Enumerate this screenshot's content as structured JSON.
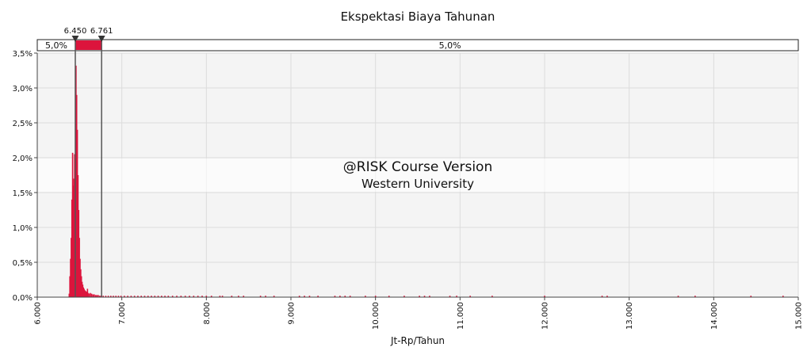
{
  "chart_data": {
    "type": "histogram",
    "title": "Ekspektasi Biaya Tahunan",
    "xlabel": "Jt-Rp/Tahun",
    "ylabel": "",
    "xlim": [
      6000,
      15000
    ],
    "ylim": [
      0,
      3.5
    ],
    "x_ticks": [
      6000,
      7000,
      8000,
      9000,
      10000,
      11000,
      12000,
      13000,
      14000,
      15000
    ],
    "x_tick_labels": [
      "6.000",
      "7.000",
      "8.000",
      "9.000",
      "10.000",
      "11.000",
      "12.000",
      "13.000",
      "14.000",
      "15.000"
    ],
    "y_ticks": [
      0,
      0.5,
      1.0,
      1.5,
      2.0,
      2.5,
      3.0,
      3.5
    ],
    "y_tick_labels": [
      "0,0%",
      "0,5%",
      "1,0%",
      "1,5%",
      "2,0%",
      "2,5%",
      "3,0%",
      "3,5%"
    ],
    "grid": true,
    "bar_color": "#dc143c",
    "delimiters": {
      "lower": 6450,
      "upper": 6761,
      "lower_label": "6.450",
      "upper_label": "6.761",
      "left_tail_label": "5,0%",
      "right_tail_label": "5,0%"
    },
    "watermark": {
      "line1": "@RISK Course Version",
      "line2": "Western University"
    },
    "bins": [
      {
        "x": 6378,
        "y": 0.05
      },
      {
        "x": 6386,
        "y": 0.3
      },
      {
        "x": 6394,
        "y": 0.55
      },
      {
        "x": 6402,
        "y": 0.85
      },
      {
        "x": 6410,
        "y": 1.4
      },
      {
        "x": 6418,
        "y": 2.07
      },
      {
        "x": 6426,
        "y": 1.6
      },
      {
        "x": 6434,
        "y": 1.7
      },
      {
        "x": 6442,
        "y": 2.05
      },
      {
        "x": 6450,
        "y": 1.65
      },
      {
        "x": 6458,
        "y": 3.32
      },
      {
        "x": 6466,
        "y": 2.9
      },
      {
        "x": 6474,
        "y": 2.4
      },
      {
        "x": 6482,
        "y": 1.75
      },
      {
        "x": 6490,
        "y": 1.25
      },
      {
        "x": 6498,
        "y": 0.85
      },
      {
        "x": 6506,
        "y": 0.55
      },
      {
        "x": 6514,
        "y": 0.4
      },
      {
        "x": 6522,
        "y": 0.3
      },
      {
        "x": 6530,
        "y": 0.22
      },
      {
        "x": 6538,
        "y": 0.18
      },
      {
        "x": 6546,
        "y": 0.14
      },
      {
        "x": 6554,
        "y": 0.12
      },
      {
        "x": 6562,
        "y": 0.1
      },
      {
        "x": 6570,
        "y": 0.09
      },
      {
        "x": 6578,
        "y": 0.08
      },
      {
        "x": 6586,
        "y": 0.07
      },
      {
        "x": 6594,
        "y": 0.12
      },
      {
        "x": 6602,
        "y": 0.06
      },
      {
        "x": 6610,
        "y": 0.05
      },
      {
        "x": 6626,
        "y": 0.06
      },
      {
        "x": 6642,
        "y": 0.05
      },
      {
        "x": 6658,
        "y": 0.04
      },
      {
        "x": 6674,
        "y": 0.04
      },
      {
        "x": 6690,
        "y": 0.03
      },
      {
        "x": 6706,
        "y": 0.03
      },
      {
        "x": 6722,
        "y": 0.03
      },
      {
        "x": 6738,
        "y": 0.02
      },
      {
        "x": 6754,
        "y": 0.02
      },
      {
        "x": 6780,
        "y": 0.02
      },
      {
        "x": 6810,
        "y": 0.02
      },
      {
        "x": 6840,
        "y": 0.02
      },
      {
        "x": 6870,
        "y": 0.02
      },
      {
        "x": 6900,
        "y": 0.02
      },
      {
        "x": 6930,
        "y": 0.02
      },
      {
        "x": 6960,
        "y": 0.02
      },
      {
        "x": 6990,
        "y": 0.02
      },
      {
        "x": 7030,
        "y": 0.02
      },
      {
        "x": 7070,
        "y": 0.02
      },
      {
        "x": 7110,
        "y": 0.02
      },
      {
        "x": 7150,
        "y": 0.02
      },
      {
        "x": 7190,
        "y": 0.02
      },
      {
        "x": 7230,
        "y": 0.02
      },
      {
        "x": 7270,
        "y": 0.02
      },
      {
        "x": 7310,
        "y": 0.02
      },
      {
        "x": 7350,
        "y": 0.02
      },
      {
        "x": 7390,
        "y": 0.02
      },
      {
        "x": 7430,
        "y": 0.02
      },
      {
        "x": 7470,
        "y": 0.02
      },
      {
        "x": 7510,
        "y": 0.02
      },
      {
        "x": 7550,
        "y": 0.02
      },
      {
        "x": 7600,
        "y": 0.02
      },
      {
        "x": 7650,
        "y": 0.02
      },
      {
        "x": 7700,
        "y": 0.02
      },
      {
        "x": 7750,
        "y": 0.02
      },
      {
        "x": 7800,
        "y": 0.02
      },
      {
        "x": 7850,
        "y": 0.02
      },
      {
        "x": 7900,
        "y": 0.02
      },
      {
        "x": 7950,
        "y": 0.02
      },
      {
        "x": 8000,
        "y": 0.02
      },
      {
        "x": 8060,
        "y": 0.02
      },
      {
        "x": 8160,
        "y": 0.02
      },
      {
        "x": 8190,
        "y": 0.02
      },
      {
        "x": 8300,
        "y": 0.02
      },
      {
        "x": 8380,
        "y": 0.02
      },
      {
        "x": 8440,
        "y": 0.02
      },
      {
        "x": 8640,
        "y": 0.02
      },
      {
        "x": 8700,
        "y": 0.02
      },
      {
        "x": 8800,
        "y": 0.02
      },
      {
        "x": 9100,
        "y": 0.02
      },
      {
        "x": 9160,
        "y": 0.02
      },
      {
        "x": 9220,
        "y": 0.02
      },
      {
        "x": 9320,
        "y": 0.02
      },
      {
        "x": 9520,
        "y": 0.02
      },
      {
        "x": 9580,
        "y": 0.02
      },
      {
        "x": 9640,
        "y": 0.02
      },
      {
        "x": 9700,
        "y": 0.02
      },
      {
        "x": 9880,
        "y": 0.02
      },
      {
        "x": 10000,
        "y": 0.02
      },
      {
        "x": 10160,
        "y": 0.02
      },
      {
        "x": 10340,
        "y": 0.02
      },
      {
        "x": 10520,
        "y": 0.02
      },
      {
        "x": 10580,
        "y": 0.02
      },
      {
        "x": 10640,
        "y": 0.02
      },
      {
        "x": 10880,
        "y": 0.02
      },
      {
        "x": 10960,
        "y": 0.02
      },
      {
        "x": 11120,
        "y": 0.02
      },
      {
        "x": 11380,
        "y": 0.02
      },
      {
        "x": 12000,
        "y": 0.02
      },
      {
        "x": 12680,
        "y": 0.02
      },
      {
        "x": 12740,
        "y": 0.02
      },
      {
        "x": 13580,
        "y": 0.02
      },
      {
        "x": 13780,
        "y": 0.02
      },
      {
        "x": 14440,
        "y": 0.02
      },
      {
        "x": 14820,
        "y": 0.02
      }
    ]
  }
}
